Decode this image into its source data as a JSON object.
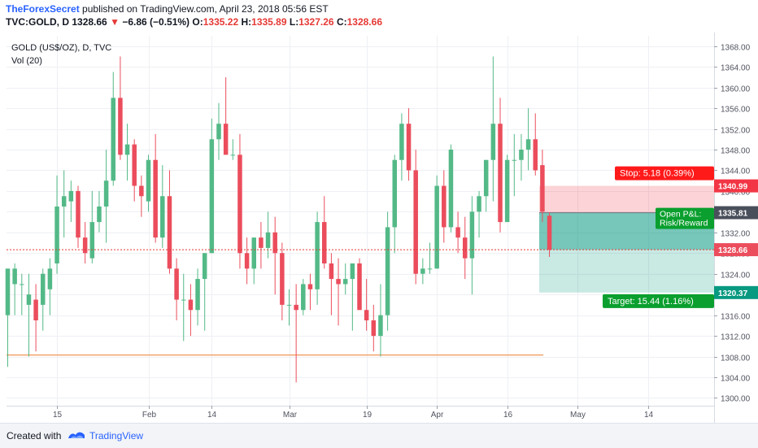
{
  "header": {
    "author": "TheForexSecret",
    "published_text": "published on TradingView.com, April 23, 2018 05:56 EST",
    "symbol": "TVC:GOLD, D",
    "last": "1328.66",
    "change": "−6.86 (−0.51%)",
    "open_label": "O:",
    "open": "1335.22",
    "high_label": "H:",
    "high": "1335.89",
    "low_label": "L:",
    "low": "1327.26",
    "close_label": "C:",
    "close": "1328.66"
  },
  "legend": {
    "title": "GOLD (US$/OZ), D, TVC",
    "volume": "Vol (20)"
  },
  "colors": {
    "up": "#53b987",
    "down": "#eb4d5c",
    "grid": "#eef0f4",
    "support": "#f2a26b",
    "stop": "#ff0000",
    "target": "#089981"
  },
  "position": {
    "stop_label": "Stop: 5.18 (0.39%)",
    "target_label": "Target: 15.44 (1.16%)",
    "pnl_line1": "Open P&L: ",
    "pnl_line2": "Risk/Reward",
    "entry": 1335.81,
    "stop": 1340.99,
    "target": 1320.37,
    "current": 1328.66,
    "stop_price_label": "1340.99",
    "entry_price_label": "1335.81",
    "current_price_label": "1328.66",
    "target_price_label": "1320.37"
  },
  "support_level": 1308.3,
  "footer": {
    "created_with": "Created with",
    "brand": "TradingView"
  },
  "chart_data": {
    "type": "candlestick",
    "title": "GOLD (US$/OZ), D, TVC",
    "ylim": [
      1298.5,
      1370
    ],
    "y_ticks": [
      1300,
      1304,
      1308,
      1312,
      1316,
      1320,
      1324,
      1328,
      1332,
      1336,
      1340,
      1344,
      1348,
      1352,
      1356,
      1360,
      1364,
      1368
    ],
    "y_tick_labels": [
      "1300.00",
      "1304.00",
      "1308.00",
      "1312.00",
      "1316.00",
      "1320.00",
      "1324.00",
      "1328.00",
      "1332.00",
      "1336.00",
      "1340.00",
      "1344.00",
      "1348.00",
      "1352.00",
      "1356.00",
      "1360.00",
      "1364.00",
      "1368.00"
    ],
    "x_tick_labels": [
      {
        "label": "15",
        "index": 7
      },
      {
        "label": "Feb",
        "index": 20
      },
      {
        "label": "14",
        "index": 29
      },
      {
        "label": "Mar",
        "index": 40
      },
      {
        "label": "19",
        "index": 51
      },
      {
        "label": "Apr",
        "index": 61
      },
      {
        "label": "16",
        "index": 71
      },
      {
        "label": "May",
        "index": 81
      },
      {
        "label": "14",
        "index": 91
      }
    ],
    "candles": [
      {
        "o": 1316,
        "h": 1325,
        "l": 1306,
        "c": 1325
      },
      {
        "o": 1322,
        "h": 1326,
        "l": 1316,
        "c": 1325
      },
      {
        "o": 1322,
        "h": 1324,
        "l": 1316,
        "c": 1322
      },
      {
        "o": 1318,
        "h": 1324,
        "l": 1308,
        "c": 1320
      },
      {
        "o": 1319,
        "h": 1322,
        "l": 1309,
        "c": 1315
      },
      {
        "o": 1318,
        "h": 1325,
        "l": 1313,
        "c": 1324
      },
      {
        "o": 1321,
        "h": 1327,
        "l": 1316,
        "c": 1325
      },
      {
        "o": 1326,
        "h": 1343,
        "l": 1324,
        "c": 1337
      },
      {
        "o": 1337,
        "h": 1344,
        "l": 1331,
        "c": 1339
      },
      {
        "o": 1338,
        "h": 1342,
        "l": 1334,
        "c": 1340
      },
      {
        "o": 1340,
        "h": 1341,
        "l": 1329,
        "c": 1331
      },
      {
        "o": 1331,
        "h": 1334,
        "l": 1326,
        "c": 1328
      },
      {
        "o": 1327,
        "h": 1340,
        "l": 1326,
        "c": 1334
      },
      {
        "o": 1334,
        "h": 1340,
        "l": 1332,
        "c": 1337
      },
      {
        "o": 1337,
        "h": 1348,
        "l": 1330,
        "c": 1342
      },
      {
        "o": 1342,
        "h": 1363,
        "l": 1341,
        "c": 1358
      },
      {
        "o": 1358,
        "h": 1366,
        "l": 1346,
        "c": 1347
      },
      {
        "o": 1347,
        "h": 1353,
        "l": 1342,
        "c": 1349
      },
      {
        "o": 1349,
        "h": 1350,
        "l": 1338,
        "c": 1341
      },
      {
        "o": 1341,
        "h": 1343,
        "l": 1335,
        "c": 1339
      },
      {
        "o": 1338,
        "h": 1347,
        "l": 1336,
        "c": 1346
      },
      {
        "o": 1346,
        "h": 1351,
        "l": 1330,
        "c": 1331
      },
      {
        "o": 1331,
        "h": 1345,
        "l": 1329,
        "c": 1339
      },
      {
        "o": 1339,
        "h": 1344,
        "l": 1324,
        "c": 1325
      },
      {
        "o": 1325,
        "h": 1327,
        "l": 1315,
        "c": 1319
      },
      {
        "o": 1319,
        "h": 1324,
        "l": 1311,
        "c": 1319
      },
      {
        "o": 1319,
        "h": 1322,
        "l": 1312,
        "c": 1317
      },
      {
        "o": 1317,
        "h": 1325,
        "l": 1314,
        "c": 1323
      },
      {
        "o": 1323,
        "h": 1328,
        "l": 1313,
        "c": 1328
      },
      {
        "o": 1328,
        "h": 1354,
        "l": 1328,
        "c": 1350
      },
      {
        "o": 1350,
        "h": 1357,
        "l": 1346,
        "c": 1353
      },
      {
        "o": 1353,
        "h": 1362,
        "l": 1347,
        "c": 1347
      },
      {
        "o": 1347,
        "h": 1350,
        "l": 1346,
        "c": 1347
      },
      {
        "o": 1347,
        "h": 1351,
        "l": 1325,
        "c": 1328
      },
      {
        "o": 1328,
        "h": 1331,
        "l": 1322,
        "c": 1325
      },
      {
        "o": 1325,
        "h": 1331,
        "l": 1322,
        "c": 1331
      },
      {
        "o": 1331,
        "h": 1334,
        "l": 1325,
        "c": 1329
      },
      {
        "o": 1329,
        "h": 1336,
        "l": 1327,
        "c": 1332
      },
      {
        "o": 1332,
        "h": 1335,
        "l": 1320,
        "c": 1328
      },
      {
        "o": 1328,
        "h": 1330,
        "l": 1315,
        "c": 1318
      },
      {
        "o": 1318,
        "h": 1321,
        "l": 1314,
        "c": 1318
      },
      {
        "o": 1318,
        "h": 1322,
        "l": 1303,
        "c": 1317
      },
      {
        "o": 1317,
        "h": 1323,
        "l": 1316,
        "c": 1322
      },
      {
        "o": 1322,
        "h": 1324,
        "l": 1317,
        "c": 1321
      },
      {
        "o": 1321,
        "h": 1336,
        "l": 1318,
        "c": 1334
      },
      {
        "o": 1334,
        "h": 1339,
        "l": 1325,
        "c": 1326
      },
      {
        "o": 1326,
        "h": 1328,
        "l": 1316,
        "c": 1323
      },
      {
        "o": 1323,
        "h": 1327,
        "l": 1314,
        "c": 1322
      },
      {
        "o": 1322,
        "h": 1326,
        "l": 1320,
        "c": 1323
      },
      {
        "o": 1323,
        "h": 1326,
        "l": 1313,
        "c": 1326
      },
      {
        "o": 1326,
        "h": 1327,
        "l": 1317,
        "c": 1317
      },
      {
        "o": 1317,
        "h": 1323,
        "l": 1313,
        "c": 1315
      },
      {
        "o": 1315,
        "h": 1318,
        "l": 1309,
        "c": 1312
      },
      {
        "o": 1312,
        "h": 1322,
        "l": 1308,
        "c": 1316
      },
      {
        "o": 1316,
        "h": 1336,
        "l": 1313,
        "c": 1333
      },
      {
        "o": 1333,
        "h": 1347,
        "l": 1328,
        "c": 1346
      },
      {
        "o": 1346,
        "h": 1355,
        "l": 1342,
        "c": 1353
      },
      {
        "o": 1353,
        "h": 1356,
        "l": 1342,
        "c": 1344
      },
      {
        "o": 1344,
        "h": 1348,
        "l": 1322,
        "c": 1324
      },
      {
        "o": 1324,
        "h": 1327,
        "l": 1322,
        "c": 1325
      },
      {
        "o": 1325,
        "h": 1330,
        "l": 1324,
        "c": 1325
      },
      {
        "o": 1325,
        "h": 1343,
        "l": 1325,
        "c": 1341
      },
      {
        "o": 1341,
        "h": 1344,
        "l": 1330,
        "c": 1333
      },
      {
        "o": 1333,
        "h": 1349,
        "l": 1332,
        "c": 1348
      },
      {
        "o": 1333,
        "h": 1336,
        "l": 1328,
        "c": 1331
      },
      {
        "o": 1331,
        "h": 1335,
        "l": 1323,
        "c": 1327
      },
      {
        "o": 1327,
        "h": 1339,
        "l": 1320,
        "c": 1336
      },
      {
        "o": 1336,
        "h": 1340,
        "l": 1331,
        "c": 1339
      },
      {
        "o": 1339,
        "h": 1346,
        "l": 1336,
        "c": 1346
      },
      {
        "o": 1346,
        "h": 1366,
        "l": 1338,
        "c": 1353
      },
      {
        "o": 1353,
        "h": 1358,
        "l": 1332,
        "c": 1334
      },
      {
        "o": 1334,
        "h": 1347,
        "l": 1334,
        "c": 1346
      },
      {
        "o": 1346,
        "h": 1351,
        "l": 1339,
        "c": 1346
      },
      {
        "o": 1346,
        "h": 1351,
        "l": 1342,
        "c": 1348
      },
      {
        "o": 1348,
        "h": 1356,
        "l": 1344,
        "c": 1350
      },
      {
        "o": 1350,
        "h": 1355,
        "l": 1343,
        "c": 1344
      },
      {
        "o": 1345,
        "h": 1348,
        "l": 1334,
        "c": 1336
      },
      {
        "o": 1335.22,
        "h": 1335.89,
        "l": 1327.26,
        "c": 1328.66
      }
    ]
  }
}
